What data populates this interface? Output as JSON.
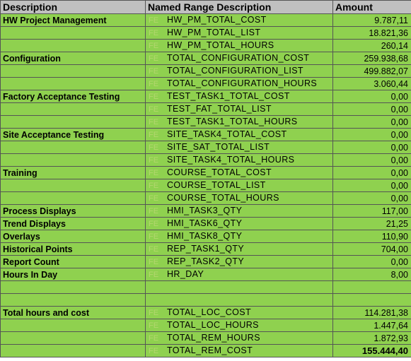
{
  "headers": {
    "description": "Description",
    "named_range": "Named Range Description",
    "amount": "Amount"
  },
  "rows": [
    {
      "desc": "HW Project Management",
      "flag": "FE",
      "name": "HW_PM_TOTAL_COST",
      "amount": "9.787,11"
    },
    {
      "desc": "",
      "flag": "FE",
      "name": "HW_PM_TOTAL_LIST",
      "amount": "18.821,36"
    },
    {
      "desc": "",
      "flag": "FE",
      "name": "HW_PM_TOTAL_HOURS",
      "amount": "260,14"
    },
    {
      "desc": "Configuration",
      "flag": "FE",
      "name": "TOTAL_CONFIGURATION_COST",
      "amount": "259.938,68"
    },
    {
      "desc": "",
      "flag": "FE",
      "name": "TOTAL_CONFIGURATION_LIST",
      "amount": "499.882,07"
    },
    {
      "desc": "",
      "flag": "FE",
      "name": "TOTAL_CONFIGURATION_HOURS",
      "amount": "3.060,44"
    },
    {
      "desc": "Factory Acceptance Testing",
      "flag": "FE",
      "name": "TEST_TASK1_TOTAL_COST",
      "amount": "0,00"
    },
    {
      "desc": "",
      "flag": "FE",
      "name": "TEST_FAT_TOTAL_LIST",
      "amount": "0,00"
    },
    {
      "desc": "",
      "flag": "FE",
      "name": "TEST_TASK1_TOTAL_HOURS",
      "amount": "0,00"
    },
    {
      "desc": "Site Acceptance Testing",
      "flag": "FE",
      "name": "SITE_TASK4_TOTAL_COST",
      "amount": "0,00"
    },
    {
      "desc": "",
      "flag": "FE",
      "name": "SITE_SAT_TOTAL_LIST",
      "amount": "0,00"
    },
    {
      "desc": "",
      "flag": "FE",
      "name": "SITE_TASK4_TOTAL_HOURS",
      "amount": "0,00"
    },
    {
      "desc": "Training",
      "flag": "FE",
      "name": "COURSE_TOTAL_COST",
      "amount": "0,00"
    },
    {
      "desc": "",
      "flag": "FE",
      "name": "COURSE_TOTAL_LIST",
      "amount": "0,00"
    },
    {
      "desc": "",
      "flag": "FE",
      "name": "COURSE_TOTAL_HOURS",
      "amount": "0,00"
    },
    {
      "desc": "Process Displays",
      "flag": "FE",
      "name": "HMI_TASK3_QTY",
      "amount": "117,00"
    },
    {
      "desc": "Trend Displays",
      "flag": "FE",
      "name": "HMI_TASK6_QTY",
      "amount": "21,25"
    },
    {
      "desc": "Overlays",
      "flag": "FE",
      "name": "HMI_TASK8_QTY",
      "amount": "110,90"
    },
    {
      "desc": "Historical Points",
      "flag": "FE",
      "name": "REP_TASK1_QTY",
      "amount": "704,00"
    },
    {
      "desc": "Report Count",
      "flag": "FE",
      "name": "REP_TASK2_QTY",
      "amount": "0,00"
    },
    {
      "desc": "Hours In Day",
      "flag": "FE",
      "name": "HR_DAY",
      "amount": "8,00"
    },
    {
      "desc": "",
      "flag": "",
      "name": "",
      "amount": ""
    },
    {
      "desc": "",
      "flag": "",
      "name": "",
      "amount": ""
    },
    {
      "desc": "Total hours and cost",
      "flag": "FE",
      "name": "TOTAL_LOC_COST",
      "amount": "114.281,38"
    },
    {
      "desc": "",
      "flag": "FE",
      "name": "TOTAL_LOC_HOURS",
      "amount": "1.447,64"
    },
    {
      "desc": "",
      "flag": "FE",
      "name": "TOTAL_REM_HOURS",
      "amount": "1.872,93"
    },
    {
      "desc": "",
      "flag": "FE",
      "name": "TOTAL_REM_COST",
      "amount": "155.444,40",
      "bold": true
    }
  ],
  "colors": {
    "header_bg": "#c0c0c0",
    "cell_bg": "#8fd14f",
    "flag_text": "#b4d66f",
    "grid": "#555555"
  }
}
